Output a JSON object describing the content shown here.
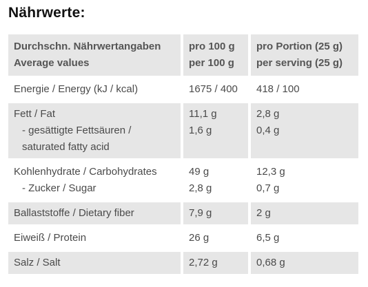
{
  "title": "Nährwerte:",
  "header": {
    "label_de": "Durchschn. Nährwertangaben",
    "label_en": "Average values",
    "col2_de": "pro 100 g",
    "col2_en": "per 100 g",
    "col3_de": "pro Portion (25 g)",
    "col3_en": "per serving (25 g)"
  },
  "rows": {
    "energy": {
      "label": "Energie / Energy (kJ / kcal)",
      "per100": "1675 / 400",
      "serving": "418 / 100"
    },
    "fat": {
      "label": "Fett / Fat",
      "per100": "11,1 g",
      "serving": "2,8 g"
    },
    "saturated": {
      "label_line1": "- gesättigte Fettsäuren /",
      "label_line2": "saturated fatty acid",
      "per100": "1,6 g",
      "serving": "0,4 g"
    },
    "carbs": {
      "label": "Kohlenhydrate / Carbohydrates",
      "per100": "49 g",
      "serving": "12,3 g"
    },
    "sugar": {
      "label": "- Zucker / Sugar",
      "per100": "2,8 g",
      "serving": "0,7 g"
    },
    "fiber": {
      "label": "Ballaststoffe / Dietary fiber",
      "per100": "7,9 g",
      "serving": "2 g"
    },
    "protein": {
      "label": "Eiweiß / Protein",
      "per100": "26 g",
      "serving": "6,5 g"
    },
    "salt": {
      "label": "Salz / Salt",
      "per100": "2,72 g",
      "serving": "0,68 g"
    }
  },
  "colors": {
    "row_shade": "#e6e6e6",
    "text": "#4a4a4a",
    "title": "#111111"
  }
}
